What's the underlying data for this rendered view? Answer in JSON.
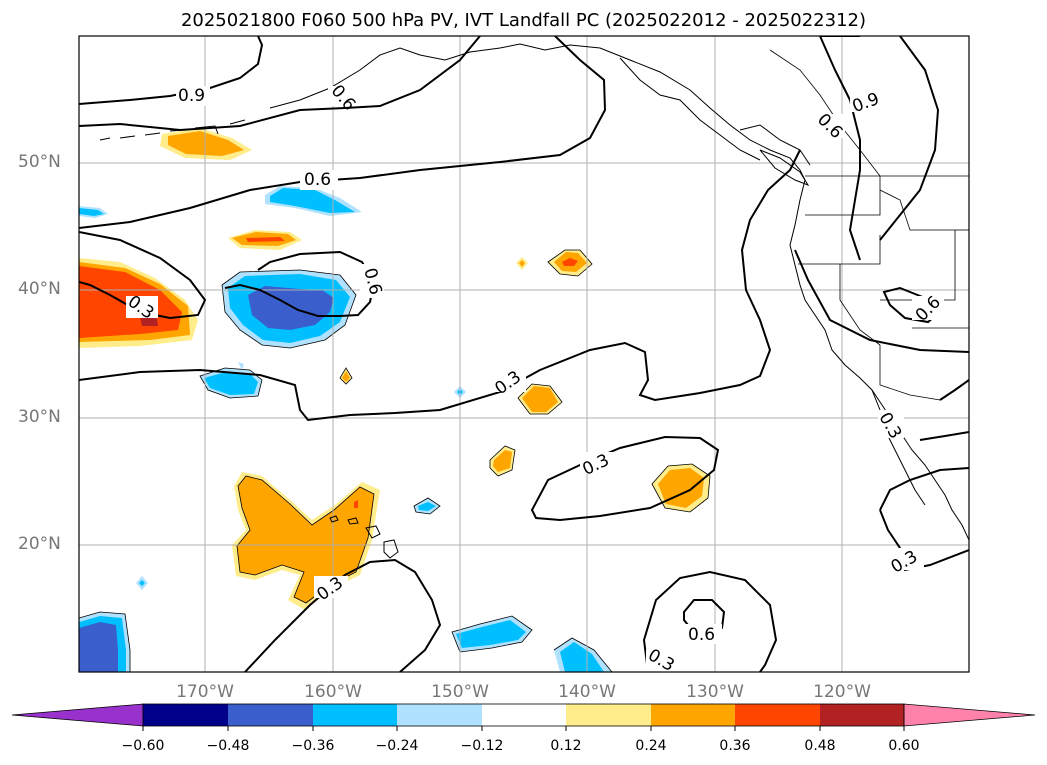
{
  "title": "2025021800 F060 500 hPa PV, IVT Landfall PC (2025022012 - 2025022312)",
  "lat_labels": [
    "50°N",
    "40°N",
    "30°N",
    "20°N"
  ],
  "lon_labels": [
    "170°W",
    "160°W",
    "150°W",
    "140°W",
    "130°W",
    "120°W"
  ],
  "contour_labels": [
    "0.9",
    "0.6",
    "0.6",
    "0.3",
    "0.6",
    "0.6",
    "0.9",
    "0.3",
    "0.3",
    "0.3",
    "0.6",
    "0.3",
    "0.6",
    "0.3",
    "0.3"
  ],
  "colorbar": {
    "ticks": [
      "−0.60",
      "−0.48",
      "−0.36",
      "−0.24",
      "−0.12",
      "0.12",
      "0.24",
      "0.36",
      "0.48",
      "0.60"
    ],
    "colors": [
      "#9932cc",
      "#00008b",
      "#3a5fcd",
      "#00bfff",
      "#b0e2ff",
      "#ffffff",
      "#ffec8b",
      "#ffa500",
      "#ff4500",
      "#b22222",
      "#ff82ab"
    ]
  }
}
